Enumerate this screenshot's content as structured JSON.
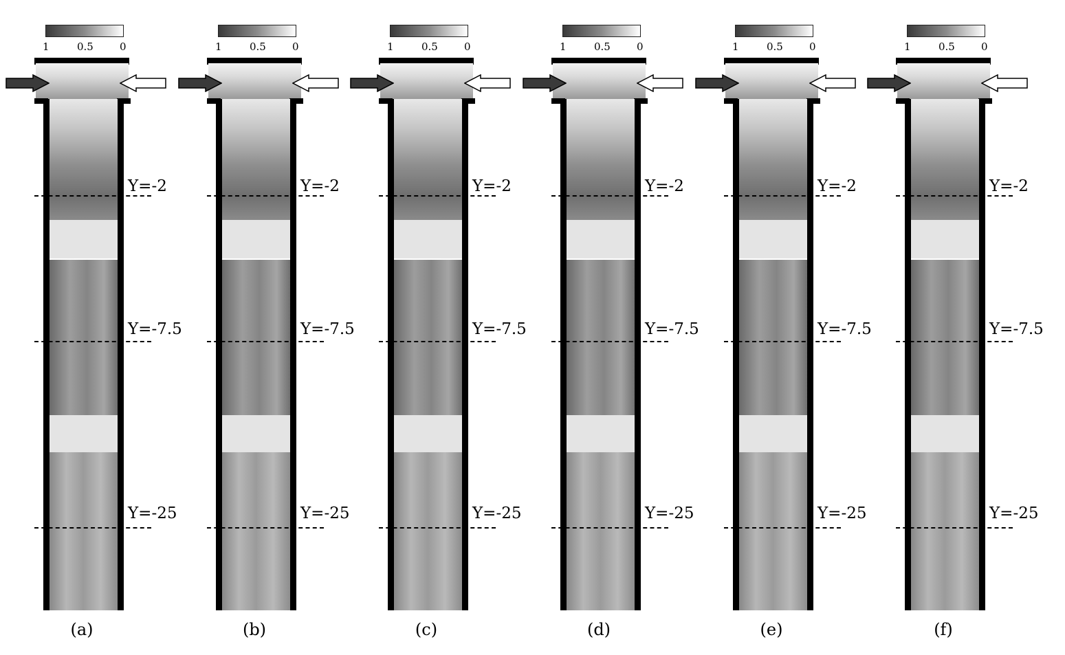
{
  "colorbar": {
    "ticks": [
      "1",
      "0.5",
      "0"
    ],
    "gradient_colors": [
      "#3a3a3a",
      "#8a8a8a",
      "#ffffff"
    ]
  },
  "flow_arrows": {
    "inlet_color": "#3a3a3a",
    "outlet_color": "#ffffff"
  },
  "lines": [
    "Y=-2",
    "Y=-7.5",
    "Y=-25"
  ],
  "panels": [
    {
      "label": "(a)"
    },
    {
      "label": "(b)"
    },
    {
      "label": "(c)"
    },
    {
      "label": "(d)"
    },
    {
      "label": "(e)"
    },
    {
      "label": "(f)"
    }
  ]
}
